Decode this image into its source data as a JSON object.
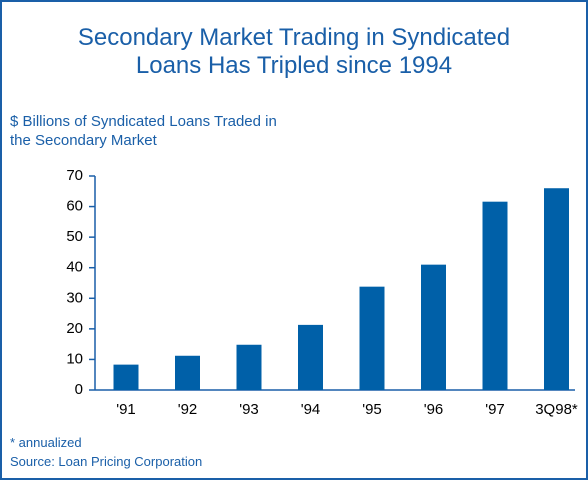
{
  "chart_data": {
    "type": "bar",
    "title": "Secondary Market Trading in Syndicated Loans Has Tripled since 1994",
    "y_label": "$ Billions of Syndicated Loans Traded in the Secondary Market",
    "categories": [
      "'91",
      "'92",
      "'93",
      "'94",
      "'95",
      "'96",
      "'97",
      "3Q98*"
    ],
    "values": [
      8.3,
      11.2,
      14.8,
      21.3,
      33.8,
      41,
      61.6,
      66
    ],
    "color": "#0060a8",
    "ylim": [
      0,
      70
    ],
    "yticks": [
      0,
      10,
      20,
      30,
      40,
      50,
      60,
      70
    ],
    "footnote": "* annualized",
    "source": "Source: Loan Pricing Corporation"
  }
}
